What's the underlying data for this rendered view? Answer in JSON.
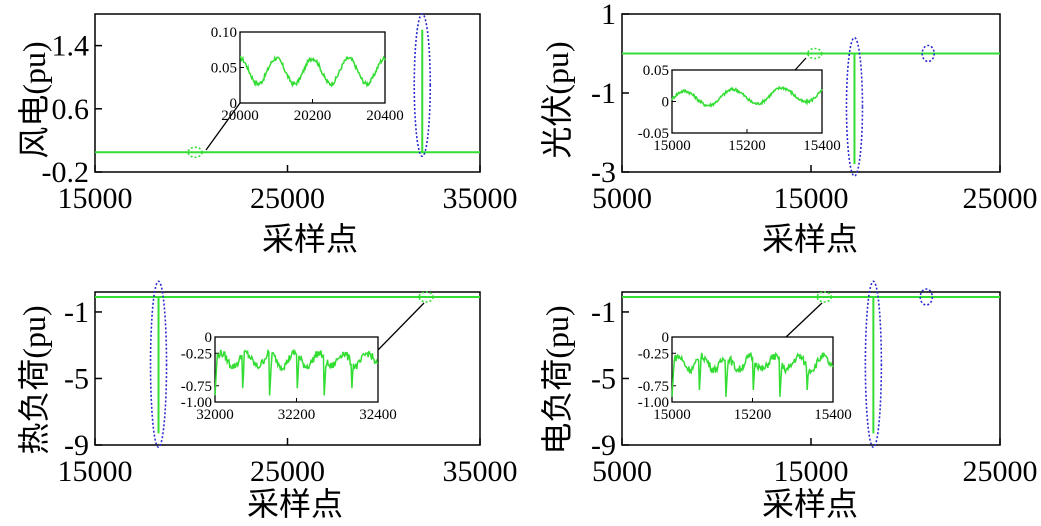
{
  "colors": {
    "signal": "#33dd33",
    "highlight_wind_side": "#33dd33",
    "ellipse_blue": "#2a2ad0",
    "axis": "#000000"
  },
  "chart_data": [
    {
      "type": "line",
      "ylabel": "风电(pu)",
      "xlabel": "采样点",
      "xlim": [
        15000,
        35000
      ],
      "ylim": [
        -0.2,
        1.8
      ],
      "xticks": [
        "15000",
        "25000",
        "35000"
      ],
      "yticks": [
        "-0.2",
        "0.6",
        "1.4"
      ],
      "xtick_values": [
        15000,
        25000,
        35000
      ],
      "ytick_values": [
        -0.2,
        0.6,
        1.4
      ],
      "series": [
        {
          "baseline": 0.05,
          "spike": {
            "x": 32000,
            "min": 0.05,
            "max": 1.6
          }
        }
      ],
      "markers": [
        {
          "type": "ellipse",
          "color": "green",
          "x": 20200,
          "y": 0.05
        },
        {
          "type": "ellipse",
          "color": "blue",
          "x": 32000,
          "y_min": 0.05,
          "y_max": 1.75
        }
      ],
      "inset": {
        "xlim": [
          20000,
          20400
        ],
        "ylim": [
          0,
          0.1
        ],
        "xticks": [
          "20000",
          "20200",
          "20400"
        ],
        "yticks": [
          "0",
          "0.05",
          "0.10"
        ],
        "xtick_values": [
          20000,
          20200,
          20400
        ],
        "ytick_values": [
          0,
          0.05,
          0.1
        ],
        "signal": "periodic",
        "mean": 0.045,
        "amplitude": 0.018,
        "period": 100
      }
    },
    {
      "type": "line",
      "ylabel": "光伏(pu)",
      "xlabel": "采样点",
      "xlim": [
        5000,
        25000
      ],
      "ylim": [
        -3,
        1
      ],
      "xticks": [
        "5000",
        "15000",
        "25000"
      ],
      "yticks": [
        "-3",
        "-1",
        "1"
      ],
      "xtick_values": [
        5000,
        15000,
        25000
      ],
      "ytick_values": [
        -3,
        -1,
        1
      ],
      "series": [
        {
          "baseline": 0,
          "spike": {
            "x": 17300,
            "min": -2.8,
            "max": 0
          }
        }
      ],
      "markers": [
        {
          "type": "ellipse",
          "color": "green",
          "x": 15200,
          "y": 0
        },
        {
          "type": "ellipse",
          "color": "blue",
          "x": 17300,
          "y_min": -3,
          "y_max": 0.3
        },
        {
          "type": "ellipse",
          "color": "blue",
          "x": 21200,
          "y": 0
        }
      ],
      "inset": {
        "xlim": [
          15000,
          15400
        ],
        "ylim": [
          -0.05,
          0.05
        ],
        "xticks": [
          "15000",
          "15200",
          "15400"
        ],
        "yticks": [
          "-0.05",
          "0",
          "0.05"
        ],
        "xtick_values": [
          15000,
          15200,
          15400
        ],
        "ytick_values": [
          -0.05,
          0,
          0.05
        ],
        "signal": "periodic-rising",
        "mean": 0.0,
        "amplitude": 0.012,
        "period": 130
      }
    },
    {
      "type": "line",
      "ylabel": "热负荷(pu)",
      "xlabel": "采样点",
      "xlim": [
        15000,
        35000
      ],
      "ylim": [
        -9,
        0.2
      ],
      "xticks": [
        "15000",
        "25000",
        "35000"
      ],
      "yticks": [
        "-9",
        "-5",
        "-1"
      ],
      "xtick_values": [
        15000,
        25000,
        35000
      ],
      "ytick_values": [
        -9,
        -5,
        -1
      ],
      "series": [
        {
          "baseline": -0.1,
          "spike": {
            "x": 18300,
            "min": -8.3,
            "max": -0.1
          }
        }
      ],
      "markers": [
        {
          "type": "ellipse",
          "color": "blue",
          "x": 18300,
          "y_min": -8.9,
          "y_max": 0.6
        },
        {
          "type": "ellipse",
          "color": "green",
          "x": 32200,
          "y": -0.1
        }
      ],
      "inset": {
        "xlim": [
          32000,
          32400
        ],
        "ylim": [
          -1.0,
          0
        ],
        "xticks": [
          "32000",
          "32200",
          "32400"
        ],
        "yticks": [
          "-1.00",
          "-0.75",
          "-0.25",
          "0"
        ],
        "xtick_values": [
          32000,
          32200,
          32400
        ],
        "ytick_values": [
          -1.0,
          -0.75,
          -0.25,
          0
        ],
        "signal": "dips",
        "mean": -0.35,
        "amplitude": 0.1,
        "dip": 0.75
      }
    },
    {
      "type": "line",
      "ylabel": "电负荷(pu)",
      "xlabel": "采样点",
      "xlim": [
        5000,
        25000
      ],
      "ylim": [
        -9,
        0.2
      ],
      "xticks": [
        "5000",
        "15000",
        "25000"
      ],
      "yticks": [
        "-9",
        "-5",
        "-1"
      ],
      "xtick_values": [
        5000,
        15000,
        25000
      ],
      "ytick_values": [
        -9,
        -5,
        -1
      ],
      "series": [
        {
          "baseline": -0.1,
          "spike": {
            "x": 18300,
            "min": -8.3,
            "max": -0.1
          }
        }
      ],
      "markers": [
        {
          "type": "ellipse",
          "color": "green",
          "x": 15700,
          "y": -0.1
        },
        {
          "type": "ellipse",
          "color": "blue",
          "x": 18300,
          "y_min": -8.9,
          "y_max": 0.6
        },
        {
          "type": "ellipse",
          "color": "blue",
          "x": 21100,
          "y": -0.1
        }
      ],
      "inset": {
        "xlim": [
          15000,
          15400
        ],
        "ylim": [
          -1.0,
          0
        ],
        "xticks": [
          "15000",
          "15200",
          "15400"
        ],
        "yticks": [
          "-1.00",
          "-0.75",
          "-0.25",
          "0"
        ],
        "xtick_values": [
          15000,
          15200,
          15400
        ],
        "ytick_values": [
          -1.0,
          -0.75,
          -0.25,
          0
        ],
        "signal": "dips",
        "mean": -0.4,
        "amplitude": 0.1,
        "dip": 0.7
      }
    }
  ]
}
